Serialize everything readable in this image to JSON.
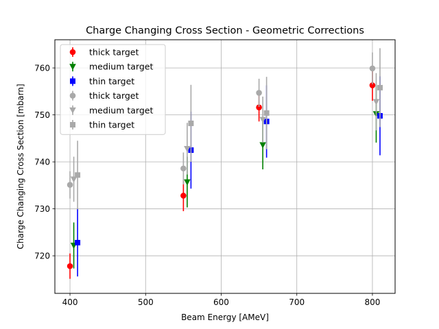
{
  "chart_data": {
    "type": "scatter",
    "title": "Charge Changing Cross Section - Geometric Corrections",
    "xlabel": "Beam Energy [AMeV]",
    "ylabel": "Charge Changing Cross Section [mbarn]",
    "xlim": [
      380,
      830
    ],
    "ylim": [
      712,
      766
    ],
    "xticks": [
      400,
      500,
      600,
      700,
      800
    ],
    "yticks": [
      720,
      730,
      740,
      750,
      760
    ],
    "grid": true,
    "legend_position": "top-left",
    "series": [
      {
        "name": "thick target",
        "marker": "circle",
        "color": "#ff0000",
        "x": [
          400,
          550,
          650,
          800
        ],
        "y": [
          717.8,
          732.8,
          751.6,
          756.3
        ],
        "yerr": [
          2.7,
          3.3,
          3.0,
          3.3
        ]
      },
      {
        "name": "medium target",
        "marker": "triangle-down",
        "color": "#008000",
        "x": [
          405,
          555,
          655,
          805
        ],
        "y": [
          722.2,
          735.7,
          743.6,
          750.2
        ],
        "yerr": [
          4.9,
          5.4,
          5.2,
          6.1
        ]
      },
      {
        "name": "thin target",
        "marker": "square",
        "color": "#0000ff",
        "x": [
          410,
          560,
          660,
          810
        ],
        "y": [
          722.8,
          742.5,
          748.6,
          749.8
        ],
        "yerr": [
          7.2,
          8.2,
          7.7,
          8.4
        ]
      },
      {
        "name": "thick target",
        "marker": "circle",
        "color": "#a9a9a9",
        "x": [
          400,
          550,
          650,
          800
        ],
        "y": [
          735.1,
          738.6,
          754.7,
          759.9
        ],
        "yerr": [
          2.9,
          3.4,
          3.0,
          3.4
        ]
      },
      {
        "name": "medium target",
        "marker": "triangle-down",
        "color": "#a9a9a9",
        "x": [
          405,
          555,
          655,
          805
        ],
        "y": [
          736.3,
          742.8,
          749.0,
          752.8
        ],
        "yerr": [
          4.8,
          5.5,
          4.9,
          6.1
        ]
      },
      {
        "name": "thin target",
        "marker": "square",
        "color": "#a9a9a9",
        "x": [
          410,
          560,
          660,
          810
        ],
        "y": [
          737.2,
          748.2,
          750.4,
          755.8
        ],
        "yerr": [
          7.3,
          8.2,
          7.7,
          8.4
        ]
      }
    ]
  }
}
